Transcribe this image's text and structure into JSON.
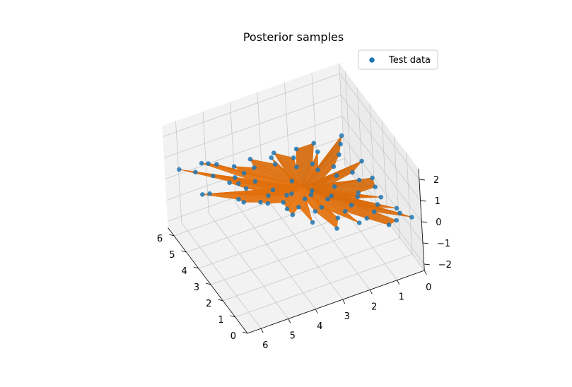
{
  "chart_data": {
    "type": "scatter",
    "projection": "3d",
    "title": "Posterior samples",
    "xlabel": "",
    "ylabel": "",
    "zlabel": "",
    "xlim": [
      0,
      6.5
    ],
    "ylim": [
      0,
      6.5
    ],
    "zlim": [
      -2.3,
      2.5
    ],
    "x_ticks": [
      "0",
      "1",
      "2",
      "3",
      "4",
      "5",
      "6"
    ],
    "y_ticks": [
      "0",
      "1",
      "2",
      "3",
      "4",
      "5",
      "6"
    ],
    "z_ticks": [
      "−2",
      "−1",
      "0",
      "1",
      "2"
    ],
    "grid": true,
    "legend": {
      "position": "top-right",
      "entries": [
        "Test data"
      ]
    },
    "series": [
      {
        "name": "Test data",
        "kind": "scatter",
        "color": "#1f77b4",
        "points": [
          [
            6.1,
            6.2,
            0.5
          ],
          [
            5.4,
            5.9,
            0.7
          ],
          [
            5.6,
            6.0,
            0.3
          ],
          [
            4.9,
            5.8,
            0.5
          ],
          [
            5.0,
            6.3,
            0.2
          ],
          [
            5.7,
            4.6,
            0.4
          ],
          [
            4.6,
            4.7,
            0.3
          ],
          [
            5.0,
            4.0,
            1.3
          ],
          [
            4.7,
            3.8,
            0.8
          ],
          [
            4.2,
            4.2,
            0.6
          ],
          [
            5.2,
            3.3,
            0.9
          ],
          [
            4.9,
            3.6,
            0.4
          ],
          [
            4.5,
            3.1,
            0.6
          ],
          [
            4.0,
            3.6,
            0.3
          ],
          [
            3.7,
            3.9,
            0.2
          ],
          [
            4.4,
            2.7,
            0.8
          ],
          [
            3.8,
            2.8,
            0.5
          ],
          [
            3.5,
            3.2,
            0.4
          ],
          [
            3.2,
            3.5,
            0.1
          ],
          [
            3.0,
            3.9,
            0.3
          ],
          [
            4.0,
            2.0,
            0.9
          ],
          [
            3.5,
            2.2,
            0.6
          ],
          [
            3.1,
            2.6,
            0.5
          ],
          [
            2.7,
            3.0,
            0.2
          ],
          [
            2.5,
            3.4,
            0.0
          ],
          [
            3.2,
            1.5,
            0.8
          ],
          [
            2.8,
            1.9,
            0.5
          ],
          [
            2.4,
            2.3,
            0.4
          ],
          [
            2.1,
            2.7,
            0.1
          ],
          [
            1.8,
            3.1,
            0.1
          ],
          [
            2.6,
            1.0,
            0.6
          ],
          [
            2.2,
            1.3,
            0.5
          ],
          [
            1.8,
            1.7,
            0.3
          ],
          [
            1.4,
            2.1,
            0.2
          ],
          [
            1.2,
            2.5,
            0.0
          ],
          [
            2.0,
            0.6,
            0.4
          ],
          [
            1.6,
            0.9,
            0.2
          ],
          [
            1.2,
            1.2,
            0.1
          ],
          [
            0.9,
            1.6,
            0.0
          ],
          [
            0.6,
            2.0,
            -0.1
          ],
          [
            1.1,
            0.2,
            0.2
          ],
          [
            0.7,
            0.5,
            0.0
          ],
          [
            0.4,
            0.9,
            -0.1
          ],
          [
            0.3,
            1.4,
            -0.3
          ],
          [
            0.1,
            0.6,
            -0.2
          ],
          [
            0.5,
            2.7,
            -0.2
          ],
          [
            0.9,
            3.1,
            0.0
          ],
          [
            1.5,
            3.6,
            0.1
          ],
          [
            2.0,
            4.0,
            0.3
          ],
          [
            2.6,
            4.4,
            0.4
          ],
          [
            3.2,
            4.8,
            0.5
          ],
          [
            3.8,
            5.2,
            0.3
          ],
          [
            4.4,
            5.5,
            0.4
          ],
          [
            0.3,
            3.4,
            -0.4
          ],
          [
            0.8,
            3.9,
            -0.3
          ],
          [
            1.3,
            4.3,
            -0.1
          ],
          [
            1.9,
            4.7,
            0.0
          ],
          [
            2.4,
            5.1,
            0.2
          ],
          [
            3.0,
            5.6,
            0.1
          ],
          [
            3.6,
            6.0,
            0.0
          ],
          [
            0.2,
            4.5,
            -0.5
          ],
          [
            0.8,
            5.0,
            -0.3
          ],
          [
            1.4,
            5.4,
            -0.2
          ],
          [
            2.0,
            5.8,
            -0.1
          ],
          [
            2.7,
            6.1,
            -0.2
          ],
          [
            0.4,
            5.8,
            -0.6
          ],
          [
            1.2,
            6.2,
            -0.5
          ],
          [
            0.1,
            6.4,
            -0.8
          ],
          [
            4.1,
            1.3,
            1.2
          ],
          [
            3.6,
            0.8,
            1.0
          ],
          [
            2.9,
            0.4,
            0.7
          ],
          [
            5.8,
            5.0,
            0.1
          ],
          [
            5.3,
            5.2,
            0.6
          ],
          [
            4.8,
            5.0,
            0.2
          ],
          [
            4.3,
            4.9,
            0.5
          ]
        ]
      },
      {
        "name": "Posterior sample surface",
        "kind": "trisurf",
        "color": "#ff7f0e"
      }
    ]
  }
}
